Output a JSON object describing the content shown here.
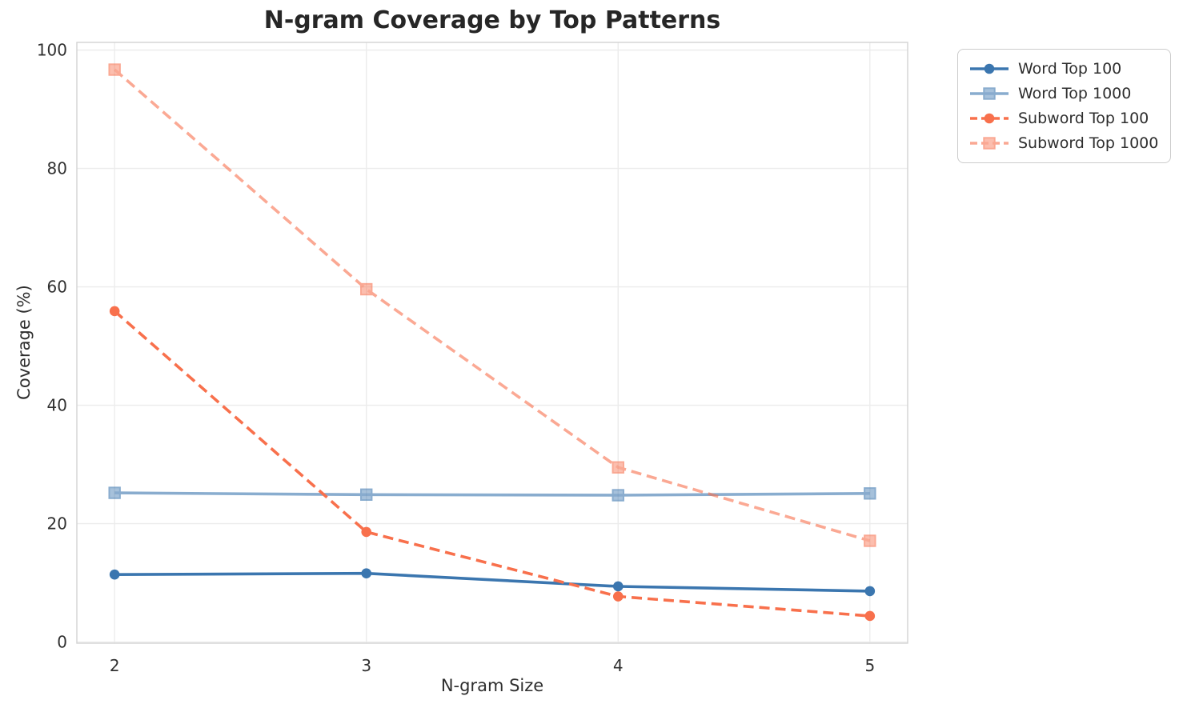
{
  "title": "N-gram Coverage by Top Patterns",
  "colors": {
    "blue": "#3B76AF",
    "orange": "#F8704C",
    "grid": "#ECECEC",
    "spine": "#D3D3D3",
    "tick_text": "#303030",
    "text": "#262626",
    "legend_border": "#CBCBCB"
  },
  "chart_data": {
    "type": "line",
    "title": "N-gram Coverage by Top Patterns",
    "xlabel": "N-gram Size",
    "ylabel": "Coverage (%)",
    "x": [
      2,
      3,
      4,
      5
    ],
    "xticks": [
      "2",
      "3",
      "4",
      "5"
    ],
    "yticks": [
      0,
      20,
      40,
      60,
      80,
      100
    ],
    "xlim": [
      1.85,
      5.15
    ],
    "ylim": [
      -0.2,
      101.3
    ],
    "grid": true,
    "legend_position": "outside-top-right",
    "series": [
      {
        "name": "Word Top 100",
        "color": "#3B76AF",
        "opacity": 1,
        "dash": "solid",
        "marker": "circle",
        "values": [
          11.4,
          11.6,
          9.4,
          8.6
        ]
      },
      {
        "name": "Word Top 1000",
        "color": "#3B76AF",
        "opacity": 0.6,
        "dash": "solid",
        "marker": "square",
        "values": [
          25.2,
          24.9,
          24.8,
          25.1
        ]
      },
      {
        "name": "Subword Top 100",
        "color": "#F8704C",
        "opacity": 1,
        "dash": "dashed",
        "marker": "circle",
        "values": [
          55.9,
          18.6,
          7.7,
          4.4
        ]
      },
      {
        "name": "Subword Top 1000",
        "color": "#F8704C",
        "opacity": 0.6,
        "dash": "dashed",
        "marker": "square",
        "values": [
          96.7,
          59.6,
          29.5,
          17.1
        ]
      }
    ]
  }
}
